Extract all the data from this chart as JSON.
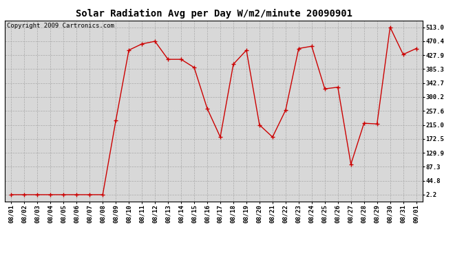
{
  "title": "Solar Radiation Avg per Day W/m2/minute 20090901",
  "copyright": "Copyright 2009 Cartronics.com",
  "labels": [
    "08/01",
    "08/02",
    "08/03",
    "08/04",
    "08/05",
    "08/06",
    "08/07",
    "08/08",
    "08/09",
    "08/10",
    "08/11",
    "08/12",
    "08/13",
    "08/14",
    "08/15",
    "08/16",
    "08/17",
    "08/18",
    "08/19",
    "08/20",
    "08/21",
    "08/22",
    "08/23",
    "08/24",
    "08/25",
    "08/26",
    "08/27",
    "08/28",
    "08/29",
    "08/30",
    "08/31",
    "09/01"
  ],
  "values": [
    2.2,
    2.2,
    2.2,
    2.2,
    2.2,
    2.2,
    2.2,
    2.2,
    228.0,
    443.0,
    462.0,
    470.0,
    415.0,
    415.0,
    390.0,
    265.0,
    178.0,
    400.0,
    443.0,
    215.0,
    178.0,
    260.0,
    448.0,
    455.0,
    325.0,
    330.0,
    95.0,
    220.0,
    218.0,
    513.0,
    430.0,
    448.0
  ],
  "line_color": "#cc0000",
  "marker": "+",
  "marker_size": 4,
  "marker_linewidth": 1.0,
  "line_width": 1.0,
  "bg_color": "#ffffff",
  "plot_bg_color": "#d8d8d8",
  "grid_color": "#aaaaaa",
  "yticks": [
    2.2,
    44.8,
    87.3,
    129.9,
    172.5,
    215.0,
    257.6,
    300.2,
    342.7,
    385.3,
    427.9,
    470.4,
    513.0
  ],
  "ylim": [
    2.2,
    513.0
  ],
  "title_fontsize": 10,
  "tick_fontsize": 6.5,
  "copyright_fontsize": 6.5
}
